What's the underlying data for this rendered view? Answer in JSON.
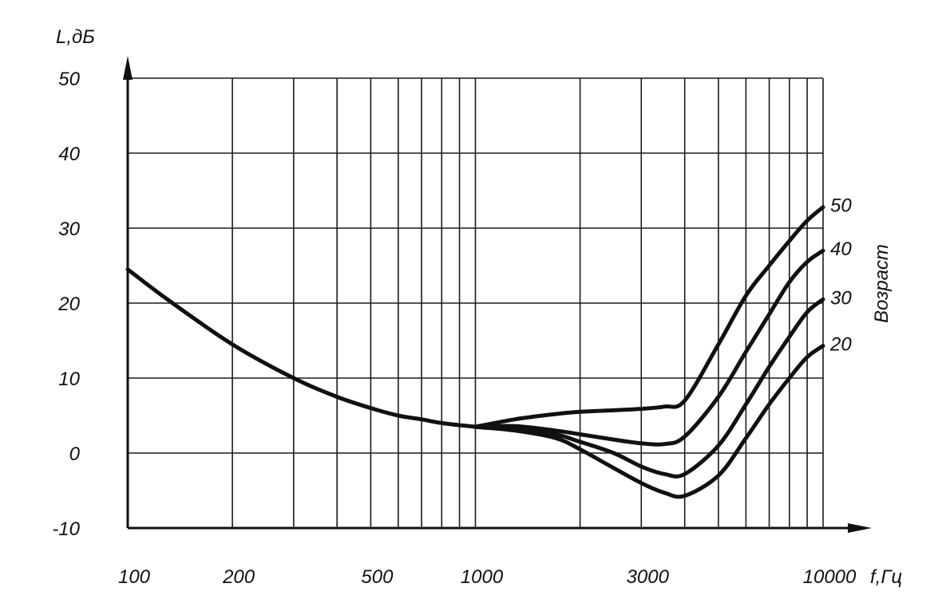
{
  "chart_data": {
    "type": "line",
    "xscale": "log",
    "xlim": [
      100,
      10000
    ],
    "ylim": [
      -10,
      50
    ],
    "yticks": [
      -10,
      0,
      10,
      20,
      30,
      40,
      50
    ],
    "xgrid": [
      100,
      200,
      300,
      400,
      500,
      600,
      700,
      800,
      900,
      1000,
      2000,
      3000,
      4000,
      5000,
      6000,
      7000,
      8000,
      9000,
      10000
    ],
    "xtick_labels": [
      {
        "x": 100,
        "label": "100"
      },
      {
        "x": 200,
        "label": "200"
      },
      {
        "x": 500,
        "label": "500"
      },
      {
        "x": 1000,
        "label": "1000"
      },
      {
        "x": 3000,
        "label": "3000"
      },
      {
        "x": 10000,
        "label": "10000"
      }
    ],
    "xlabel": "f,Гц",
    "ylabel": "L,дБ",
    "legend_title": "Возраст",
    "grid": true,
    "series": [
      {
        "name": "20",
        "x": [
          100,
          130,
          200,
          300,
          400,
          500,
          600,
          700,
          800,
          1000,
          1300,
          1700,
          2000,
          2500,
          3000,
          3500,
          4000,
          5000,
          6000,
          7000,
          8000,
          9000,
          10000
        ],
        "values": [
          24.5,
          20.5,
          14.5,
          10,
          7.5,
          6,
          5,
          4.5,
          4,
          3.5,
          3,
          2,
          0.5,
          -2,
          -4,
          -5.3,
          -5.7,
          -3,
          2,
          6.5,
          10,
          12.8,
          14.3
        ]
      },
      {
        "name": "30",
        "x": [
          1000,
          1300,
          1700,
          2000,
          2500,
          3000,
          3500,
          4000,
          5000,
          6000,
          7000,
          8000,
          9000,
          10000
        ],
        "values": [
          3.5,
          3.2,
          2.5,
          1.5,
          0,
          -1.8,
          -2.8,
          -2.8,
          1,
          6.5,
          11.5,
          15.5,
          18.8,
          20.5
        ]
      },
      {
        "name": "40",
        "x": [
          1000,
          1300,
          1700,
          2000,
          2500,
          3000,
          3500,
          4000,
          5000,
          6000,
          7000,
          8000,
          9000,
          10000
        ],
        "values": [
          3.5,
          3.6,
          3,
          2.5,
          1.8,
          1.3,
          1.2,
          2.2,
          7.5,
          13.5,
          18.5,
          22.8,
          25.5,
          27
        ]
      },
      {
        "name": "50",
        "x": [
          1000,
          1300,
          1700,
          2000,
          2500,
          3000,
          3500,
          4000,
          5000,
          6000,
          7000,
          8000,
          9000,
          10000
        ],
        "values": [
          3.5,
          4.5,
          5.2,
          5.5,
          5.7,
          5.9,
          6.2,
          7,
          14.5,
          21,
          25,
          28.3,
          31,
          32.8
        ]
      }
    ]
  }
}
